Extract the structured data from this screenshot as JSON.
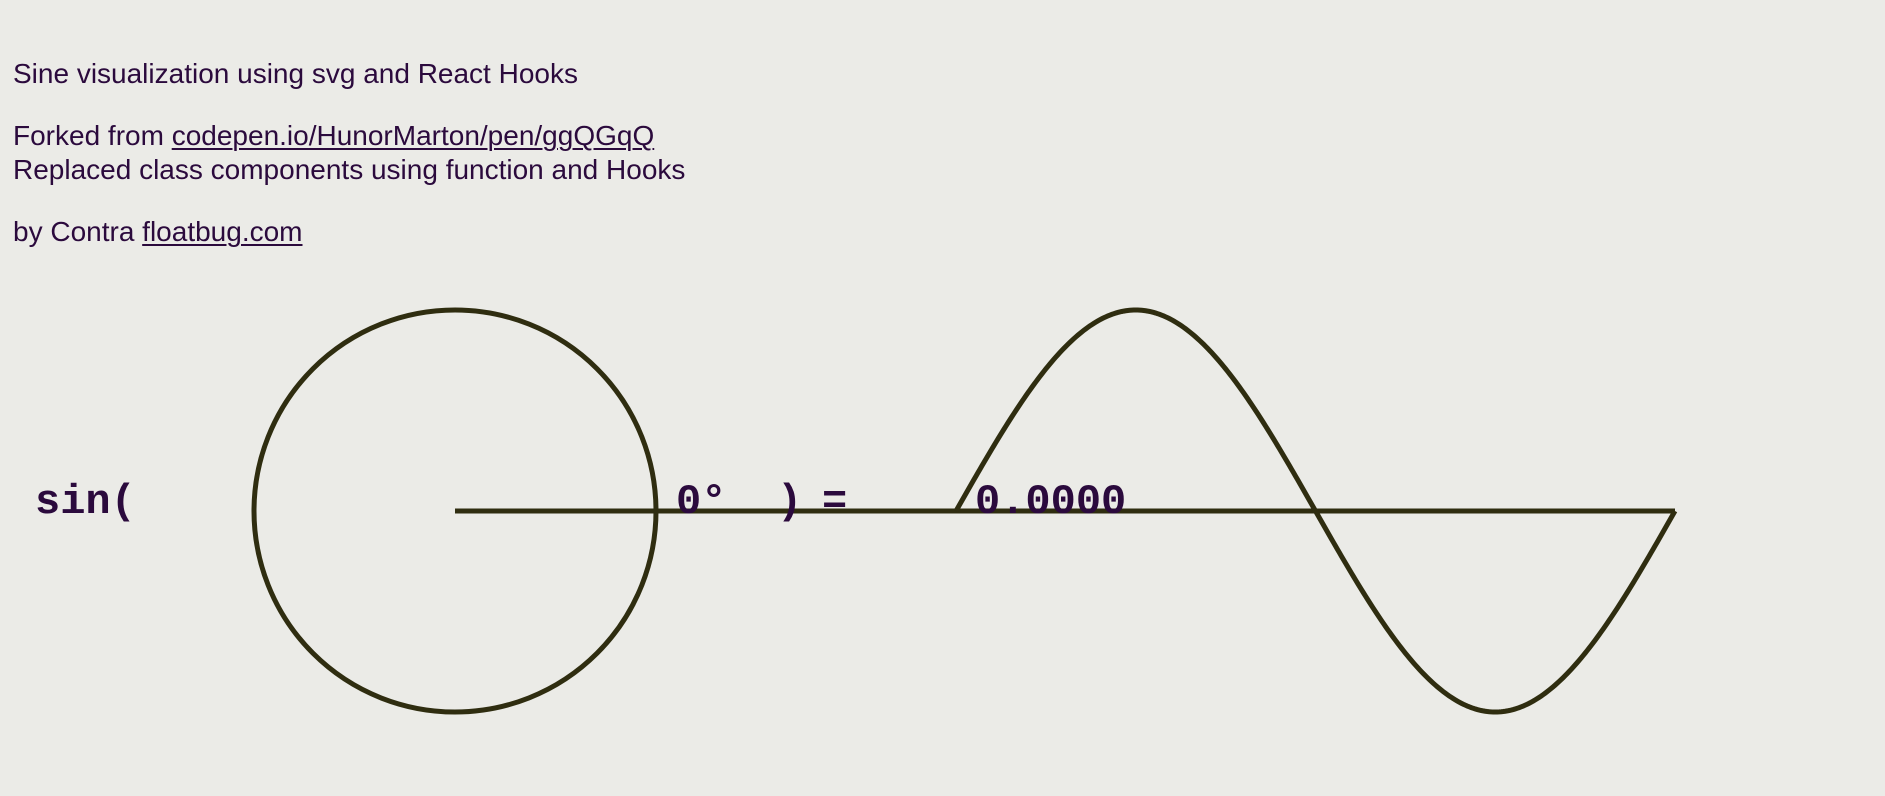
{
  "header": {
    "title": "Sine visualization using svg and React Hooks",
    "forked_prefix": "Forked from ",
    "forked_link": "codepen.io/HunorMarton/pen/ggQGqQ",
    "replaced_text": "Replaced class components using function and Hooks",
    "by_prefix": "by Contra ",
    "by_link": "floatbug.com"
  },
  "formula": {
    "func": "sin(",
    "angle": "0°",
    "close_paren": ")",
    "equals": "=",
    "result": "0.0000"
  },
  "chart_data": {
    "type": "line",
    "title": "",
    "angle_degrees": 0,
    "sin_value": 0,
    "x_range_degrees": [
      0,
      360
    ],
    "y_range": [
      -1,
      1
    ],
    "function": "sin",
    "grid": false
  },
  "colors": {
    "background": "#ebebe7",
    "text": "#2b0a3d",
    "stroke": "#2f2d10"
  }
}
